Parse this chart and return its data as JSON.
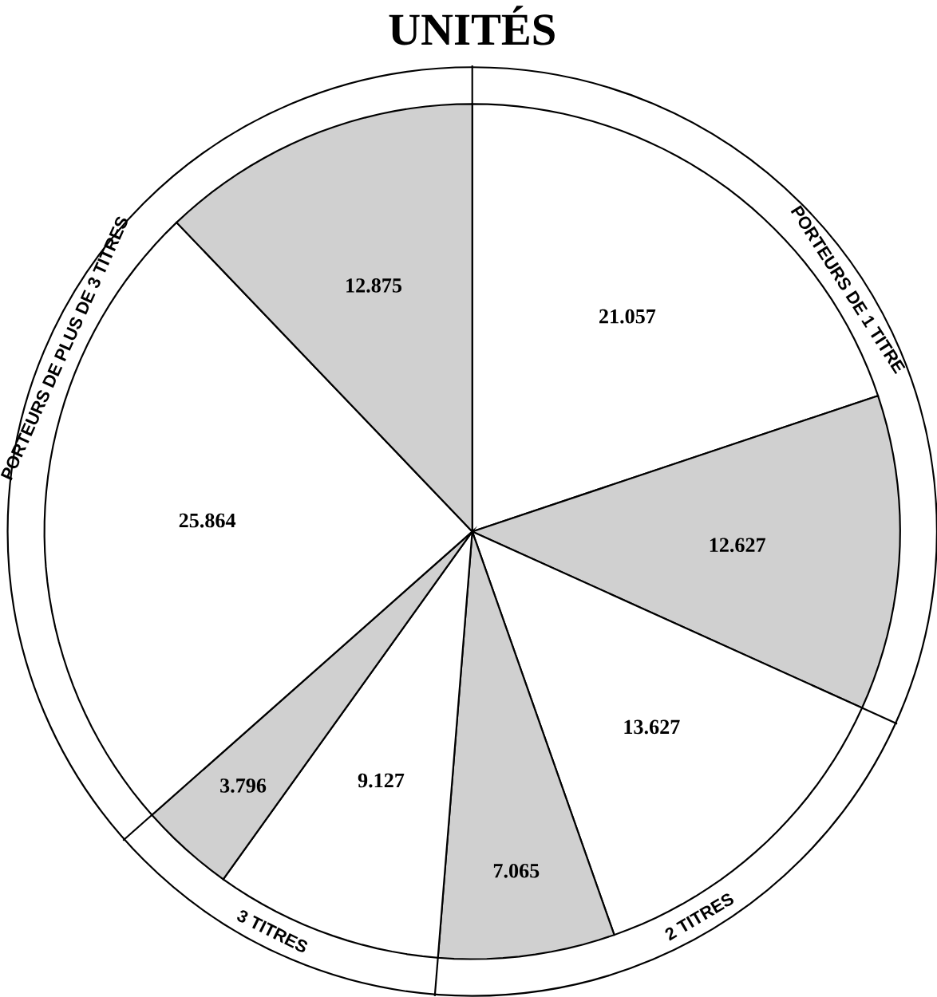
{
  "chart_data": {
    "type": "pie",
    "title": "UNITÉS",
    "categories": [
      null,
      null,
      null,
      null,
      null,
      null,
      null,
      null
    ],
    "values": [
      21057,
      12627,
      13627,
      7065,
      9127,
      3796,
      25864,
      12875
    ],
    "value_labels": [
      "21.057",
      "12.627",
      "13.627",
      "7.065",
      "9.127",
      "3.796",
      "25.864",
      "12.875"
    ],
    "colors": [
      "#ffffff",
      "#d0d0d0",
      "#ffffff",
      "#d0d0d0",
      "#ffffff",
      "#d0d0d0",
      "#ffffff",
      "#d0d0d0"
    ],
    "annotations": [
      "PORTEURS DE 1 TITRE",
      "2 TITRES",
      "3 TITRES",
      "PORTEURS DE PLUS DE 3 TITRES"
    ]
  }
}
